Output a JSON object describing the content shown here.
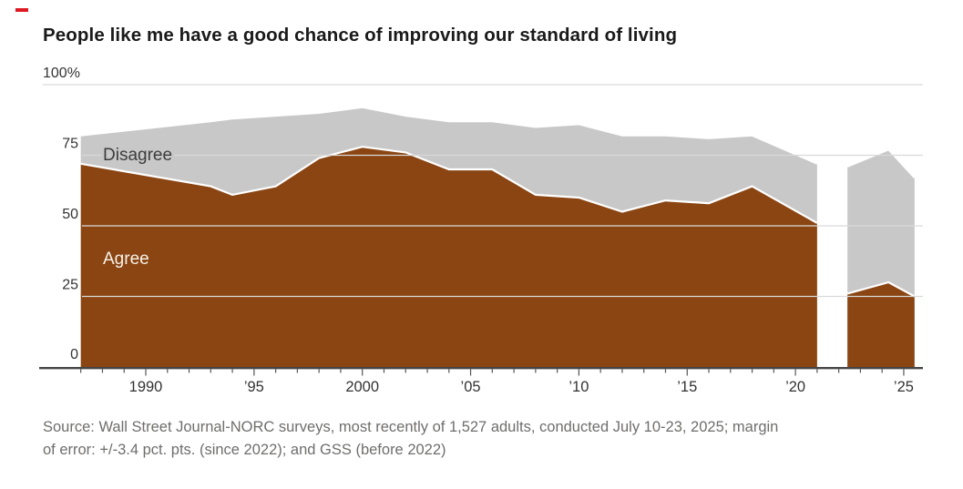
{
  "header": {
    "kicker_color": "#dd1a21"
  },
  "chart_data": {
    "type": "area",
    "title": "People like me have a good chance of improving our standard of living",
    "unit": "%",
    "ylim": [
      0,
      100
    ],
    "xlim": [
      1987,
      2025.6
    ],
    "grid": "horizontal",
    "legend_position": "labels-inside-areas",
    "series_labels": {
      "agree": "Agree",
      "disagree": "Disagree"
    },
    "colors": {
      "agree_fill": "#8a4513",
      "disagree_fill": "#c8c8c8",
      "edge_stroke": "#ffffff",
      "gridline": "#d9d9d9",
      "axis": "#454545",
      "tick": "#555555",
      "tick_label": "#333333",
      "agree_label_text": "#f7f2e8",
      "disagree_label_text": "#3d3d3d"
    },
    "yticks": [
      {
        "value": 100,
        "label": "100%"
      },
      {
        "value": 75,
        "label": "75"
      },
      {
        "value": 50,
        "label": "50"
      },
      {
        "value": 25,
        "label": "25"
      },
      {
        "value": 0,
        "label": "0"
      }
    ],
    "xticks": [
      {
        "year": 1990,
        "label": "1990"
      },
      {
        "year": 1995,
        "label": "’95"
      },
      {
        "year": 2000,
        "label": "2000"
      },
      {
        "year": 2005,
        "label": "’05"
      },
      {
        "year": 2010,
        "label": "’10"
      },
      {
        "year": 2015,
        "label": "’15"
      },
      {
        "year": 2020,
        "label": "’20"
      },
      {
        "year": 2025,
        "label": "’25"
      }
    ],
    "minor_tick_years": {
      "from": 1987,
      "to": 2025,
      "step": 1
    },
    "segments": [
      {
        "key": "gss",
        "name": "GSS (before 2022)",
        "points": [
          {
            "year": 1987,
            "agree": 72,
            "disagree": 10
          },
          {
            "year": 1993,
            "agree": 64,
            "disagree": 23
          },
          {
            "year": 1994,
            "agree": 61,
            "disagree": 27
          },
          {
            "year": 1996,
            "agree": 64,
            "disagree": 25
          },
          {
            "year": 1998,
            "agree": 74,
            "disagree": 16
          },
          {
            "year": 2000,
            "agree": 78,
            "disagree": 14
          },
          {
            "year": 2002,
            "agree": 76,
            "disagree": 13
          },
          {
            "year": 2004,
            "agree": 70,
            "disagree": 17
          },
          {
            "year": 2006,
            "agree": 70,
            "disagree": 17
          },
          {
            "year": 2008,
            "agree": 61,
            "disagree": 24
          },
          {
            "year": 2010,
            "agree": 60,
            "disagree": 26
          },
          {
            "year": 2012,
            "agree": 55,
            "disagree": 27
          },
          {
            "year": 2014,
            "agree": 59,
            "disagree": 23
          },
          {
            "year": 2016,
            "agree": 58,
            "disagree": 23
          },
          {
            "year": 2018,
            "agree": 64,
            "disagree": 18
          },
          {
            "year": 2021,
            "agree": 51,
            "disagree": 21
          }
        ]
      },
      {
        "key": "wsj",
        "name": "WSJ-NORC (since 2022)",
        "points": [
          {
            "year": 2022.4,
            "agree": 26,
            "disagree": 45
          },
          {
            "year": 2024.3,
            "agree": 30,
            "disagree": 47
          },
          {
            "year": 2025.5,
            "agree": 25,
            "disagree": 42
          }
        ]
      }
    ]
  },
  "source": {
    "line1": "Source: Wall Street Journal-NORC surveys, most recently of 1,527 adults, conducted July 10-23, 2025; margin",
    "line2": "of error: +/-3.4 pct. pts. (since 2022); and GSS (before 2022)"
  }
}
